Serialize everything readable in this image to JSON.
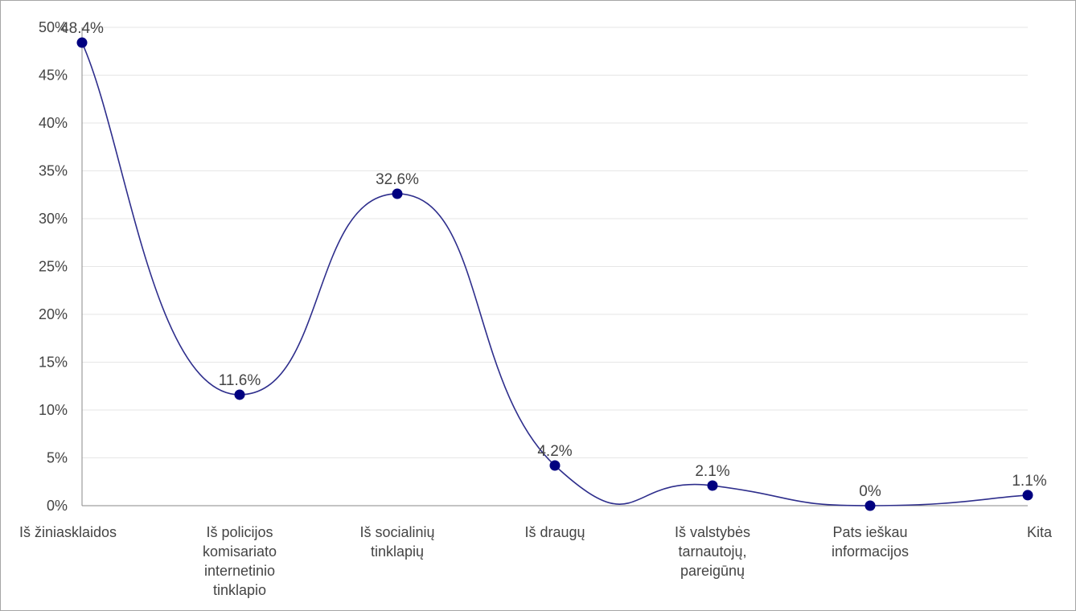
{
  "chart_data": {
    "type": "line",
    "smooth": true,
    "categories": [
      [
        "Iš žiniasklaidos"
      ],
      [
        "Iš policijos",
        "komisariato",
        "internetinio",
        "tinklapio"
      ],
      [
        "Iš socialinių",
        "tinklapių"
      ],
      [
        "Iš draugų"
      ],
      [
        "Iš valstybės",
        "tarnautojų,",
        "pareigūnų"
      ],
      [
        "Pats ieškau",
        "informacijos"
      ],
      [
        "Kita"
      ]
    ],
    "series": [
      {
        "values": [
          48.4,
          11.6,
          32.6,
          4.2,
          2.1,
          0,
          1.1
        ],
        "data_labels": [
          "48.4%",
          "11.6%",
          "32.6%",
          "4.2%",
          "2.1%",
          "0%",
          "1.1%"
        ]
      }
    ],
    "y_ticks": [
      0,
      5,
      10,
      15,
      20,
      25,
      30,
      35,
      40,
      45,
      50
    ],
    "y_tick_labels": [
      "0%",
      "5%",
      "10%",
      "15%",
      "20%",
      "25%",
      "30%",
      "35%",
      "40%",
      "45%",
      "50%"
    ],
    "ylim": [
      0,
      50
    ],
    "grid": true,
    "legend": "none",
    "colors": {
      "line": "#2e2e8c",
      "point": "#000080",
      "grid": "#e6e6e6",
      "axis": "#888888",
      "text": "#444444",
      "border": "#a6a6a6"
    }
  }
}
